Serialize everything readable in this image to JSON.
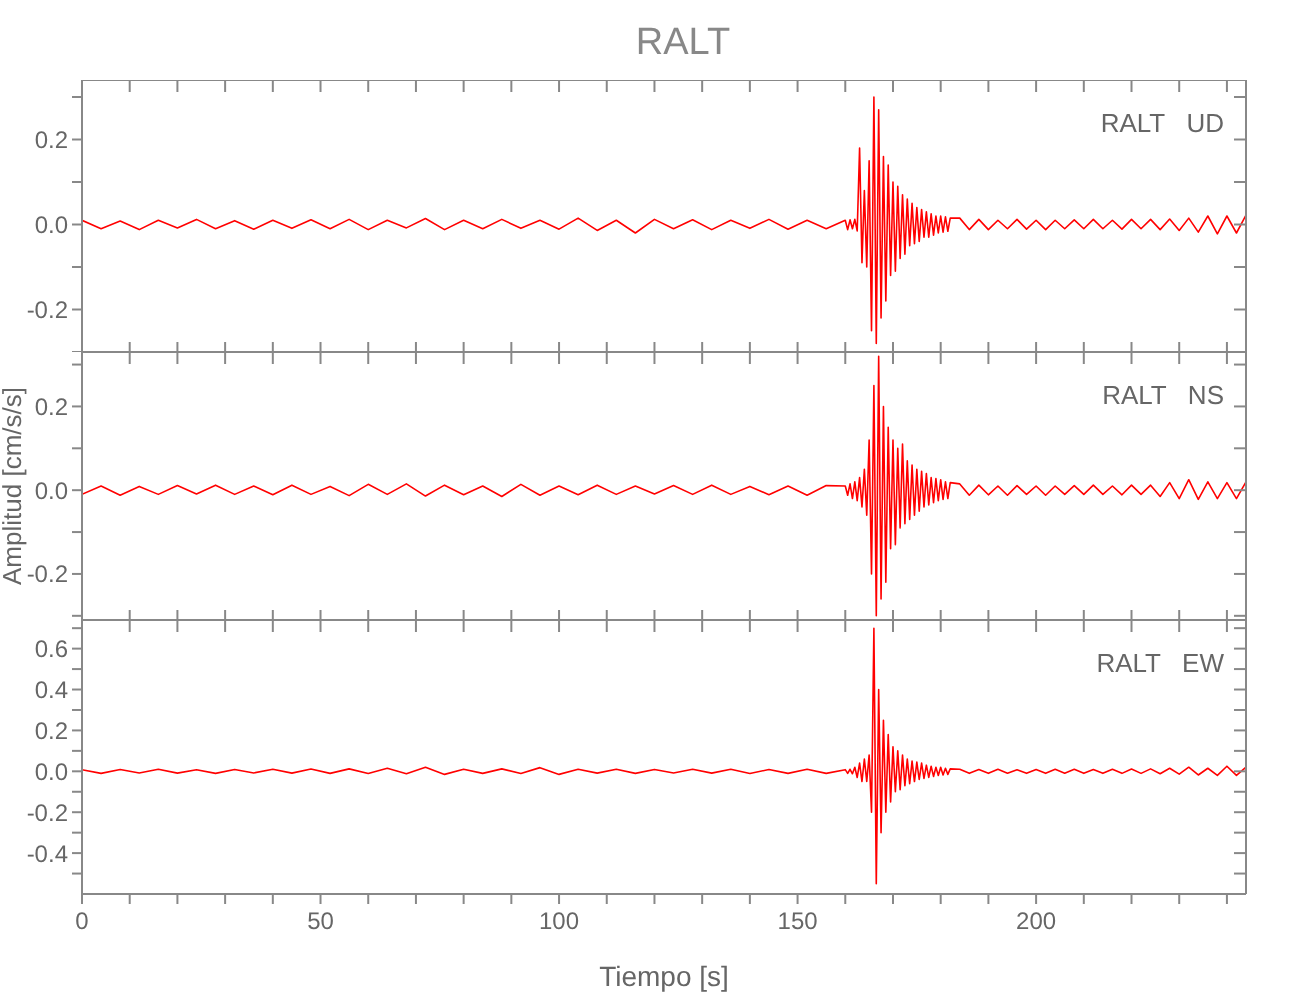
{
  "chart_data": [
    {
      "type": "line",
      "title": "RALT",
      "annotations": [
        "RALT   UD"
      ],
      "xlim": [
        0,
        244
      ],
      "ylim": [
        -0.3,
        0.34
      ],
      "tick_labels": "y",
      "xticks": [
        {
          "value": 0,
          "label": null
        },
        {
          "value": 10,
          "label": null
        },
        {
          "value": 20,
          "label": null
        },
        {
          "value": 30,
          "label": null
        },
        {
          "value": 40,
          "label": null
        },
        {
          "value": 50,
          "label": null
        },
        {
          "value": 60,
          "label": null
        },
        {
          "value": 70,
          "label": null
        },
        {
          "value": 80,
          "label": null
        },
        {
          "value": 90,
          "label": null
        },
        {
          "value": 100,
          "label": null
        },
        {
          "value": 110,
          "label": null
        },
        {
          "value": 120,
          "label": null
        },
        {
          "value": 130,
          "label": null
        },
        {
          "value": 140,
          "label": null
        },
        {
          "value": 150,
          "label": null
        },
        {
          "value": 160,
          "label": null
        },
        {
          "value": 170,
          "label": null
        },
        {
          "value": 180,
          "label": null
        },
        {
          "value": 190,
          "label": null
        },
        {
          "value": 200,
          "label": null
        },
        {
          "value": 210,
          "label": null
        },
        {
          "value": 220,
          "label": null
        },
        {
          "value": 230,
          "label": null
        },
        {
          "value": 240,
          "label": null
        }
      ],
      "yticks": [
        {
          "value": -0.3,
          "label": null
        },
        {
          "value": -0.2,
          "label": "-0.2"
        },
        {
          "value": -0.1,
          "label": null
        },
        {
          "value": 0,
          "label": "0.0"
        },
        {
          "value": 0.1,
          "label": null
        },
        {
          "value": 0.2,
          "label": "0.2"
        },
        {
          "value": 0.3,
          "label": null
        }
      ],
      "x": [
        0,
        4,
        8,
        12,
        16,
        20,
        24,
        28,
        32,
        36,
        40,
        44,
        48,
        52,
        56,
        60,
        64,
        68,
        72,
        76,
        80,
        84,
        88,
        92,
        96,
        100,
        104,
        108,
        112,
        116,
        120,
        124,
        128,
        132,
        136,
        140,
        144,
        148,
        152,
        156,
        160,
        160.5,
        161,
        161.5,
        162,
        162.5,
        163,
        163.5,
        164,
        164.5,
        165,
        165.5,
        166,
        166.5,
        167,
        167.5,
        168,
        168.5,
        169,
        169.5,
        170,
        170.5,
        171,
        171.5,
        172,
        172.5,
        173,
        173.5,
        174,
        174.5,
        175,
        175.5,
        176,
        176.5,
        177,
        177.5,
        178,
        178.5,
        179,
        179.5,
        180,
        180.5,
        181,
        181.5,
        182,
        184,
        186,
        188,
        190,
        192,
        194,
        196,
        198,
        200,
        202,
        204,
        206,
        208,
        210,
        212,
        214,
        216,
        218,
        220,
        222,
        224,
        226,
        228,
        230,
        232,
        234,
        236,
        238,
        240,
        242,
        244
      ],
      "series": [
        {
          "color": "#ff0000",
          "values": [
            0.01,
            -0.01,
            0.008,
            -0.012,
            0.01,
            -0.008,
            0.012,
            -0.01,
            0.009,
            -0.011,
            0.01,
            -0.009,
            0.011,
            -0.01,
            0.012,
            -0.012,
            0.01,
            -0.008,
            0.014,
            -0.012,
            0.01,
            -0.01,
            0.012,
            -0.009,
            0.01,
            -0.011,
            0.015,
            -0.014,
            0.01,
            -0.02,
            0.012,
            -0.01,
            0.011,
            -0.012,
            0.01,
            -0.009,
            0.012,
            -0.011,
            0.01,
            -0.01,
            0.01,
            -0.012,
            0.011,
            -0.01,
            0.012,
            -0.015,
            0.18,
            -0.09,
            0.08,
            -0.1,
            0.15,
            -0.25,
            0.3,
            -0.28,
            0.27,
            -0.22,
            0.16,
            -0.18,
            0.14,
            -0.12,
            0.1,
            -0.11,
            0.09,
            -0.08,
            0.07,
            -0.07,
            0.06,
            -0.05,
            0.05,
            -0.045,
            0.04,
            -0.04,
            0.035,
            -0.03,
            0.03,
            -0.03,
            0.025,
            -0.025,
            0.02,
            -0.02,
            0.02,
            -0.018,
            0.018,
            -0.016,
            0.015,
            0.015,
            -0.012,
            0.012,
            -0.012,
            0.01,
            -0.01,
            0.012,
            -0.011,
            0.01,
            -0.012,
            0.01,
            -0.01,
            0.011,
            -0.01,
            0.012,
            -0.01,
            0.01,
            -0.011,
            0.012,
            -0.01,
            0.012,
            -0.012,
            0.013,
            -0.014,
            0.015,
            -0.018,
            0.02,
            -0.022,
            0.02,
            -0.02,
            0.022
          ]
        }
      ]
    },
    {
      "type": "line",
      "ylabel": "Amplitud [cm/s/s]",
      "annotations": [
        "RALT   NS"
      ],
      "xlim": [
        0,
        244
      ],
      "ylim": [
        -0.31,
        0.33
      ],
      "tick_labels": "y",
      "xticks": [
        {
          "value": 0,
          "label": null
        },
        {
          "value": 10,
          "label": null
        },
        {
          "value": 20,
          "label": null
        },
        {
          "value": 30,
          "label": null
        },
        {
          "value": 40,
          "label": null
        },
        {
          "value": 50,
          "label": null
        },
        {
          "value": 60,
          "label": null
        },
        {
          "value": 70,
          "label": null
        },
        {
          "value": 80,
          "label": null
        },
        {
          "value": 90,
          "label": null
        },
        {
          "value": 100,
          "label": null
        },
        {
          "value": 110,
          "label": null
        },
        {
          "value": 120,
          "label": null
        },
        {
          "value": 130,
          "label": null
        },
        {
          "value": 140,
          "label": null
        },
        {
          "value": 150,
          "label": null
        },
        {
          "value": 160,
          "label": null
        },
        {
          "value": 170,
          "label": null
        },
        {
          "value": 180,
          "label": null
        },
        {
          "value": 190,
          "label": null
        },
        {
          "value": 200,
          "label": null
        },
        {
          "value": 210,
          "label": null
        },
        {
          "value": 220,
          "label": null
        },
        {
          "value": 230,
          "label": null
        },
        {
          "value": 240,
          "label": null
        }
      ],
      "yticks": [
        {
          "value": -0.3,
          "label": null
        },
        {
          "value": -0.2,
          "label": "-0.2"
        },
        {
          "value": -0.1,
          "label": null
        },
        {
          "value": 0,
          "label": "0.0"
        },
        {
          "value": 0.1,
          "label": null
        },
        {
          "value": 0.2,
          "label": "0.2"
        },
        {
          "value": 0.3,
          "label": null
        }
      ],
      "x": [
        0,
        4,
        8,
        12,
        16,
        20,
        24,
        28,
        32,
        36,
        40,
        44,
        48,
        52,
        56,
        60,
        64,
        68,
        72,
        76,
        80,
        84,
        88,
        92,
        96,
        100,
        104,
        108,
        112,
        116,
        120,
        124,
        128,
        132,
        136,
        140,
        144,
        148,
        152,
        156,
        160,
        160.5,
        161,
        161.5,
        162,
        162.5,
        163,
        163.5,
        164,
        164.5,
        165,
        165.5,
        166,
        166.5,
        167,
        167.5,
        168,
        168.5,
        169,
        169.5,
        170,
        170.5,
        171,
        171.5,
        172,
        172.5,
        173,
        173.5,
        174,
        174.5,
        175,
        175.5,
        176,
        176.5,
        177,
        177.5,
        178,
        178.5,
        179,
        179.5,
        180,
        180.5,
        181,
        181.5,
        182,
        184,
        186,
        188,
        190,
        192,
        194,
        196,
        198,
        200,
        202,
        204,
        206,
        208,
        210,
        212,
        214,
        216,
        218,
        220,
        222,
        224,
        226,
        228,
        230,
        232,
        234,
        236,
        238,
        240,
        242,
        244
      ],
      "series": [
        {
          "color": "#ff0000",
          "values": [
            -0.01,
            0.01,
            -0.012,
            0.009,
            -0.01,
            0.011,
            -0.009,
            0.012,
            -0.01,
            0.01,
            -0.011,
            0.012,
            -0.01,
            0.009,
            -0.013,
            0.014,
            -0.01,
            0.015,
            -0.014,
            0.012,
            -0.011,
            0.01,
            -0.015,
            0.014,
            -0.012,
            0.01,
            -0.011,
            0.012,
            -0.01,
            0.01,
            -0.009,
            0.011,
            -0.01,
            0.012,
            -0.01,
            0.009,
            -0.011,
            0.01,
            -0.012,
            0.011,
            0.01,
            -0.012,
            0.015,
            -0.02,
            0.02,
            -0.025,
            0.03,
            -0.04,
            0.05,
            -0.06,
            0.12,
            -0.2,
            0.25,
            -0.3,
            0.32,
            -0.26,
            0.2,
            -0.22,
            0.15,
            -0.14,
            0.12,
            -0.13,
            0.1,
            -0.09,
            0.11,
            -0.08,
            0.07,
            -0.07,
            0.06,
            -0.06,
            0.05,
            -0.05,
            0.045,
            -0.04,
            0.04,
            -0.035,
            0.03,
            -0.03,
            0.028,
            -0.025,
            0.025,
            -0.022,
            0.02,
            -0.02,
            0.018,
            0.015,
            -0.012,
            0.012,
            -0.011,
            0.01,
            -0.012,
            0.011,
            -0.01,
            0.01,
            -0.012,
            0.01,
            -0.01,
            0.011,
            -0.01,
            0.012,
            -0.01,
            0.01,
            -0.011,
            0.012,
            -0.01,
            0.012,
            -0.015,
            0.018,
            -0.02,
            0.025,
            -0.022,
            0.02,
            -0.02,
            0.018,
            -0.02,
            0.02
          ]
        }
      ]
    },
    {
      "type": "line",
      "xlabel": "Tiempo [s]",
      "annotations": [
        "RALT   EW"
      ],
      "xlim": [
        0,
        244
      ],
      "ylim": [
        -0.6,
        0.74
      ],
      "xticks": [
        0,
        {
          "value": 10,
          "label": null
        },
        {
          "value": 20,
          "label": null
        },
        {
          "value": 30,
          "label": null
        },
        {
          "value": 40,
          "label": null
        },
        50,
        {
          "value": 60,
          "label": null
        },
        {
          "value": 70,
          "label": null
        },
        {
          "value": 80,
          "label": null
        },
        {
          "value": 90,
          "label": null
        },
        100,
        {
          "value": 110,
          "label": null
        },
        {
          "value": 120,
          "label": null
        },
        {
          "value": 130,
          "label": null
        },
        {
          "value": 140,
          "label": null
        },
        150,
        {
          "value": 160,
          "label": null
        },
        {
          "value": 170,
          "label": null
        },
        {
          "value": 180,
          "label": null
        },
        {
          "value": 190,
          "label": null
        },
        200,
        {
          "value": 210,
          "label": null
        },
        {
          "value": 220,
          "label": null
        },
        {
          "value": 230,
          "label": null
        },
        {
          "value": 240,
          "label": null
        }
      ],
      "yticks": [
        {
          "value": -0.5,
          "label": null
        },
        {
          "value": -0.4,
          "label": "-0.4"
        },
        {
          "value": -0.3,
          "label": null
        },
        {
          "value": -0.2,
          "label": "-0.2"
        },
        {
          "value": -0.1,
          "label": null
        },
        {
          "value": 0,
          "label": "0.0"
        },
        {
          "value": 0.1,
          "label": null
        },
        {
          "value": 0.2,
          "label": "0.2"
        },
        {
          "value": 0.3,
          "label": null
        },
        {
          "value": 0.4,
          "label": "0.4"
        },
        {
          "value": 0.5,
          "label": null
        },
        {
          "value": 0.6,
          "label": "0.6"
        },
        {
          "value": 0.7,
          "label": null
        }
      ],
      "x": [
        0,
        4,
        8,
        12,
        16,
        20,
        24,
        28,
        32,
        36,
        40,
        44,
        48,
        52,
        56,
        60,
        64,
        68,
        72,
        76,
        80,
        84,
        88,
        92,
        96,
        100,
        104,
        108,
        112,
        116,
        120,
        124,
        128,
        132,
        136,
        140,
        144,
        148,
        152,
        156,
        160,
        160.5,
        161,
        161.5,
        162,
        162.5,
        163,
        163.5,
        164,
        164.5,
        165,
        165.5,
        166,
        166.5,
        167,
        167.5,
        168,
        168.5,
        169,
        169.5,
        170,
        170.5,
        171,
        171.5,
        172,
        172.5,
        173,
        173.5,
        174,
        174.5,
        175,
        175.5,
        176,
        176.5,
        177,
        177.5,
        178,
        178.5,
        179,
        179.5,
        180,
        180.5,
        181,
        181.5,
        182,
        184,
        186,
        188,
        190,
        192,
        194,
        196,
        198,
        200,
        202,
        204,
        206,
        208,
        210,
        212,
        214,
        216,
        218,
        220,
        222,
        224,
        226,
        228,
        230,
        232,
        234,
        236,
        238,
        240,
        242,
        244
      ],
      "series": [
        {
          "color": "#ff0000",
          "values": [
            0.008,
            -0.01,
            0.009,
            -0.008,
            0.01,
            -0.009,
            0.008,
            -0.01,
            0.009,
            -0.008,
            0.01,
            -0.009,
            0.011,
            -0.01,
            0.012,
            -0.011,
            0.015,
            -0.012,
            0.02,
            -0.015,
            0.01,
            -0.01,
            0.012,
            -0.011,
            0.018,
            -0.015,
            0.01,
            -0.009,
            0.01,
            -0.01,
            0.009,
            -0.008,
            0.01,
            -0.009,
            0.01,
            -0.011,
            0.009,
            -0.01,
            0.01,
            -0.01,
            0.008,
            -0.01,
            0.01,
            -0.012,
            0.02,
            -0.03,
            0.04,
            -0.05,
            0.06,
            -0.05,
            0.08,
            -0.2,
            0.7,
            -0.55,
            0.4,
            -0.3,
            0.25,
            -0.2,
            0.18,
            -0.15,
            0.12,
            -0.1,
            0.1,
            -0.09,
            0.08,
            -0.07,
            0.06,
            -0.06,
            0.05,
            -0.05,
            0.045,
            -0.04,
            0.04,
            -0.035,
            0.03,
            -0.03,
            0.025,
            -0.025,
            0.02,
            -0.02,
            0.02,
            -0.018,
            0.015,
            -0.015,
            0.012,
            0.01,
            -0.01,
            0.009,
            -0.01,
            0.01,
            -0.009,
            0.008,
            -0.01,
            0.009,
            -0.01,
            0.01,
            -0.009,
            0.01,
            -0.01,
            0.009,
            -0.01,
            0.01,
            -0.01,
            0.011,
            -0.01,
            0.012,
            -0.012,
            0.015,
            -0.014,
            0.02,
            -0.018,
            0.015,
            -0.02,
            0.025,
            -0.02,
            0.02
          ]
        }
      ]
    }
  ]
}
